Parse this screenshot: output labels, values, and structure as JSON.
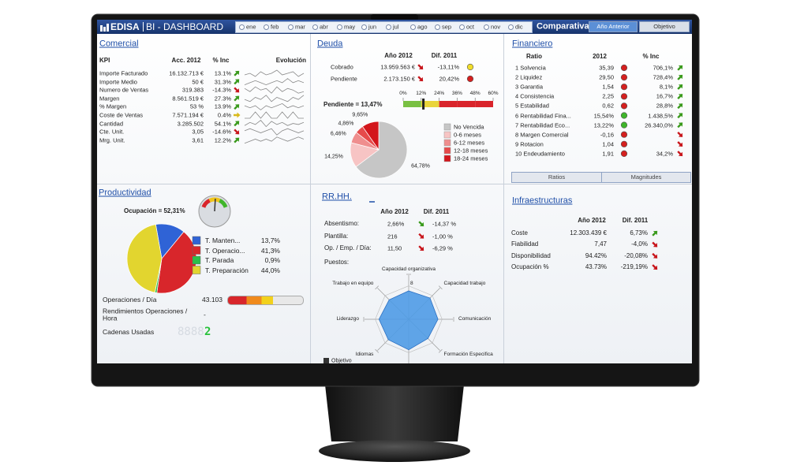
{
  "header": {
    "brand": "EDISA",
    "product": "BI - DASHBOARD",
    "months": [
      "ene",
      "feb",
      "mar",
      "abr",
      "may",
      "jun",
      "jul",
      "ago",
      "sep",
      "oct",
      "nov",
      "dic"
    ],
    "mode": "Comparativa",
    "buttons": [
      "Año Anterior",
      "Objetivo"
    ]
  },
  "comercial": {
    "title": "Comercial",
    "columns": [
      "KPI",
      "Acc. 2012",
      "% Inc",
      "Evolución"
    ],
    "rows": [
      [
        "Importe Facturado",
        "16.132.713 €",
        "13.1%"
      ],
      [
        "Importe Medio",
        "50 €",
        "31.3%"
      ],
      [
        "Numero de Ventas",
        "319.383",
        "-14.3%"
      ],
      [
        "Margen",
        "8.561.519 €",
        "27.3%"
      ],
      [
        "% Margen",
        "53 %",
        "13.9%"
      ],
      [
        "Coste de Ventas",
        "7.571.194 €",
        "0.4%"
      ],
      [
        "Cantidad",
        "3.285.502",
        "54.1%"
      ],
      [
        "Cte. Unit.",
        "3,05",
        "-14.6%"
      ],
      [
        "Mrg. Unit.",
        "3,61",
        "12.2%"
      ]
    ],
    "arrows": [
      "up-green",
      "up-green",
      "down-red",
      "up-green",
      "up-green",
      "flat-yellow",
      "up-green",
      "down-red",
      "up-green"
    ],
    "sparklines": [
      [
        5,
        6,
        4,
        7,
        5,
        6,
        8,
        5,
        6,
        7,
        4,
        6
      ],
      [
        4,
        5,
        6,
        5,
        4,
        5,
        6,
        5,
        7,
        5,
        6,
        5
      ],
      [
        6,
        4,
        7,
        5,
        6,
        3,
        7,
        4,
        6,
        5,
        3,
        4
      ],
      [
        5,
        4,
        6,
        5,
        7,
        4,
        6,
        5,
        4,
        6,
        5,
        7
      ],
      [
        6,
        5,
        6,
        4,
        6,
        5,
        6,
        7,
        5,
        6,
        5,
        6
      ],
      [
        5,
        5,
        6,
        5,
        6,
        5,
        5,
        6,
        5,
        6,
        5,
        5
      ],
      [
        3,
        6,
        4,
        8,
        2,
        7,
        4,
        6,
        3,
        5,
        4,
        6
      ],
      [
        5,
        6,
        5,
        4,
        5,
        6,
        3,
        5,
        6,
        5,
        4,
        5
      ],
      [
        4,
        5,
        6,
        5,
        6,
        5,
        7,
        6,
        5,
        6,
        7,
        6
      ]
    ]
  },
  "deuda": {
    "title": "Deuda",
    "columns": [
      "Año 2012",
      "Dif. 2011"
    ],
    "rows": [
      [
        "Cobrado",
        "13.959.563 €",
        "-13,11%"
      ],
      [
        "Pendiente",
        "2.173.150 €",
        "20,42%"
      ]
    ],
    "arrows": [
      "down-red",
      "down-red"
    ],
    "status": [
      "yellow",
      "red"
    ],
    "gauge": {
      "label": "Pendiente = 13,47%",
      "value": 13.47,
      "xlim": [
        0,
        60
      ],
      "xticks": [
        {
          "value": 0,
          "label": "0%"
        },
        {
          "value": 12,
          "label": "12%"
        },
        {
          "value": 24,
          "label": "24%"
        },
        {
          "value": 36,
          "label": "36%"
        },
        {
          "value": 48,
          "label": "48%"
        },
        {
          "value": 60,
          "label": "60%"
        }
      ],
      "band_colors": [
        "#79c043",
        "#e9d43b",
        "#d9242b",
        "#d9242b",
        "#d9242b"
      ]
    },
    "pie": {
      "type": "pie",
      "categories": [
        "No Vencida",
        "0-6 meses",
        "6-12 meses",
        "12-18 meses",
        "18-24 meses"
      ],
      "values": [
        64.78,
        14.25,
        6.46,
        4.86,
        9.65
      ],
      "value_labels": [
        "64,78%",
        "14,25%",
        "6,46%",
        "4,86%",
        "9,65%"
      ],
      "colors": [
        "#c6c6c6",
        "#f7c4c4",
        "#ef8e8e",
        "#e64a4a",
        "#d3161c"
      ]
    }
  },
  "financiero": {
    "title": "Financiero",
    "columns": [
      "Ratio",
      "2012",
      "% Inc"
    ],
    "rows": [
      [
        "1 Solvencia",
        "35,39",
        "706,1%"
      ],
      [
        "2 Liquidez",
        "29,50",
        "728,4%"
      ],
      [
        "3 Garantia",
        "1,54",
        "8,1%"
      ],
      [
        "4 Consistencia",
        "2,25",
        "16,7%"
      ],
      [
        "5 Estabilidad",
        "0,62",
        "28,8%"
      ],
      [
        "6 Rentabilidad Fina...",
        "15,54%",
        "1.438,5%"
      ],
      [
        "7 Rentabilidad Eco...",
        "13,22%",
        "26.340,0%"
      ],
      [
        "8 Margen Comercial",
        "-0,16",
        null
      ],
      [
        "9 Rotacion",
        "1,04",
        null
      ],
      [
        "10 Endeudamiento",
        "1,91",
        "34,2%"
      ]
    ],
    "status": [
      "red",
      "red",
      "red",
      "red",
      "red",
      "green",
      "green",
      "red",
      "red",
      "red"
    ],
    "arrows": [
      "up-green",
      "up-green",
      "up-green",
      "up-green",
      "up-green",
      "up-green",
      "up-green",
      "down-red",
      "down-red",
      "down-red"
    ],
    "buttons": [
      "Ratios",
      "Magnitudes"
    ]
  },
  "productividad": {
    "title": "Productividad",
    "ocupacion": {
      "label": "Ocupación = 52,31%",
      "value": 52.31,
      "lim": [
        0,
        100
      ]
    },
    "pie": {
      "type": "pie",
      "categories": [
        "T. Manten...",
        "T. Operacio...",
        "T. Parada",
        "T. Preparación"
      ],
      "values": [
        13.7,
        41.3,
        0.9,
        44.0
      ],
      "value_labels": [
        "13,7%",
        "41,3%",
        "0,9%",
        "44,0%"
      ],
      "colors": [
        "#2f63d6",
        "#d8262b",
        "#2cbf4a",
        "#e2d52f"
      ]
    },
    "metrics": [
      [
        "Operaciones / Día",
        "43.103"
      ],
      [
        "Rendimientos Operaciones / Hora",
        "-"
      ],
      [
        "Cadenas Usadas",
        "2"
      ]
    ],
    "lcd_ghost": "8888"
  },
  "rrhh": {
    "title": "RR.HH.",
    "columns": [
      "Año 2012",
      "Dif. 2011"
    ],
    "rows": [
      [
        "Absentismo:",
        "2,66%",
        "-14,37 %"
      ],
      [
        "Plantilla:",
        "216",
        "-1,00 %"
      ],
      [
        "Op. / Emp. / Día:",
        "11,50",
        "-6,29 %"
      ]
    ],
    "arrows": [
      "down-green",
      "down-red",
      "down-red"
    ],
    "positions_label": "Puestos:",
    "radar": {
      "type": "radar",
      "categories": [
        "Capacidad organizativa",
        "Capacidad trabajo",
        "Comunicación",
        "Formación Especifica",
        null,
        "Idiomas",
        "Liderazgo",
        "Trabajo en equipo"
      ],
      "values": [
        6.8,
        7.2,
        7.0,
        6.5,
        7.3,
        6.9,
        7.1,
        6.6
      ],
      "color": "#4f9be6",
      "rlim": [
        0,
        10
      ],
      "rticks": [
        8
      ],
      "legend": [
        {
          "name": "Objetivo",
          "color": "#333333"
        }
      ]
    }
  },
  "infra": {
    "title": "Infraestructuras",
    "columns": [
      "Año 2012",
      "Dif. 2011"
    ],
    "rows": [
      [
        "Coste",
        "12.303.439 €",
        "6,73%"
      ],
      [
        "Fiabilidad",
        "7,47",
        "-4,0%"
      ],
      [
        "Disponibilidad",
        "94.42%",
        "-20,08%"
      ],
      [
        "Ocupación %",
        "43.73%",
        "-219,19%"
      ]
    ],
    "arrows": [
      "up-green",
      "down-red",
      "down-red",
      "down-red"
    ]
  }
}
